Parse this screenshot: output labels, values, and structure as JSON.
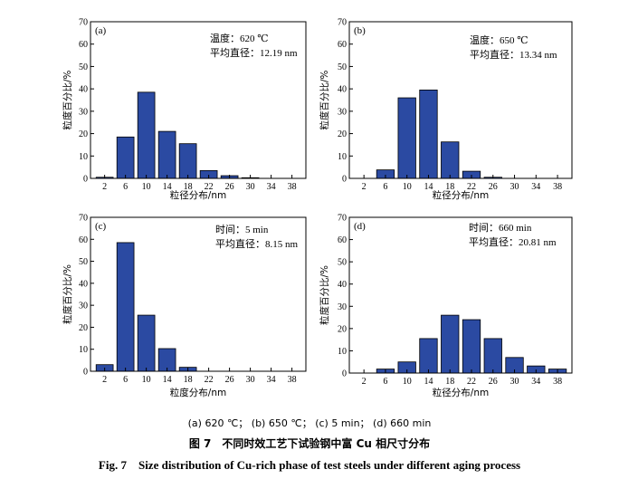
{
  "chart_data": [
    {
      "type": "bar",
      "panel_label": "(a)",
      "annotation": [
        "温度：620 ℃",
        "平均直径：12.19 nm"
      ],
      "xlabel": "粒径分布/nm",
      "ylabel": "粒度百分比/%",
      "categories": [
        "2",
        "6",
        "10",
        "14",
        "18",
        "22",
        "26",
        "30",
        "34",
        "38"
      ],
      "values": [
        0.5,
        18.5,
        38.5,
        21,
        15.5,
        3.5,
        1.2,
        0.3,
        0,
        0
      ],
      "ylim": [
        0,
        70
      ],
      "yticks": [
        0,
        10,
        20,
        30,
        40,
        50,
        60,
        70
      ],
      "bar_color": "#2b4aa2"
    },
    {
      "type": "bar",
      "panel_label": "(b)",
      "annotation": [
        "温度：650 ℃",
        "平均直径：13.34 nm"
      ],
      "xlabel": "粒径分布/nm",
      "ylabel": "粒度百分比/%",
      "categories": [
        "2",
        "6",
        "10",
        "14",
        "18",
        "22",
        "26",
        "30",
        "34",
        "38"
      ],
      "values": [
        0,
        3.8,
        36,
        39.5,
        16.3,
        3.2,
        0.5,
        0,
        0,
        0
      ],
      "ylim": [
        0,
        70
      ],
      "yticks": [
        0,
        10,
        20,
        30,
        40,
        50,
        60,
        70
      ],
      "bar_color": "#2b4aa2"
    },
    {
      "type": "bar",
      "panel_label": "(c)",
      "annotation": [
        "时间：5 min",
        "平均直径：8.15 nm"
      ],
      "xlabel": "粒度分布/nm",
      "ylabel": "粒度百分比/%",
      "categories": [
        "2",
        "6",
        "10",
        "14",
        "18",
        "22",
        "26",
        "30",
        "34",
        "38"
      ],
      "values": [
        3,
        58.5,
        25.5,
        10.3,
        1.8,
        0,
        0,
        0,
        0,
        0
      ],
      "ylim": [
        0,
        70
      ],
      "yticks": [
        0,
        10,
        20,
        30,
        40,
        50,
        60,
        70
      ],
      "bar_color": "#2b4aa2"
    },
    {
      "type": "bar",
      "panel_label": "(d)",
      "annotation": [
        "时间：660 min",
        "平均直径：20.81 nm"
      ],
      "xlabel": "粒径分布/nm",
      "ylabel": "粒度百分比/%",
      "categories": [
        "2",
        "6",
        "10",
        "14",
        "18",
        "22",
        "26",
        "30",
        "34",
        "38"
      ],
      "values": [
        0,
        1.8,
        5,
        15.5,
        26,
        24,
        15.5,
        7,
        3.2,
        1.8
      ],
      "ylim": [
        0,
        70
      ],
      "yticks": [
        0,
        10,
        20,
        30,
        40,
        50,
        60,
        70
      ],
      "bar_color": "#2b4aa2"
    }
  ],
  "caption": {
    "sub": "(a) 620 ℃； (b) 650 ℃； (c) 5 min； (d) 660 min",
    "cn": "图 7　不同时效工艺下试验钢中富 Cu 相尺寸分布",
    "en": "Fig. 7　Size distribution of Cu-rich phase of test steels under different aging process"
  }
}
